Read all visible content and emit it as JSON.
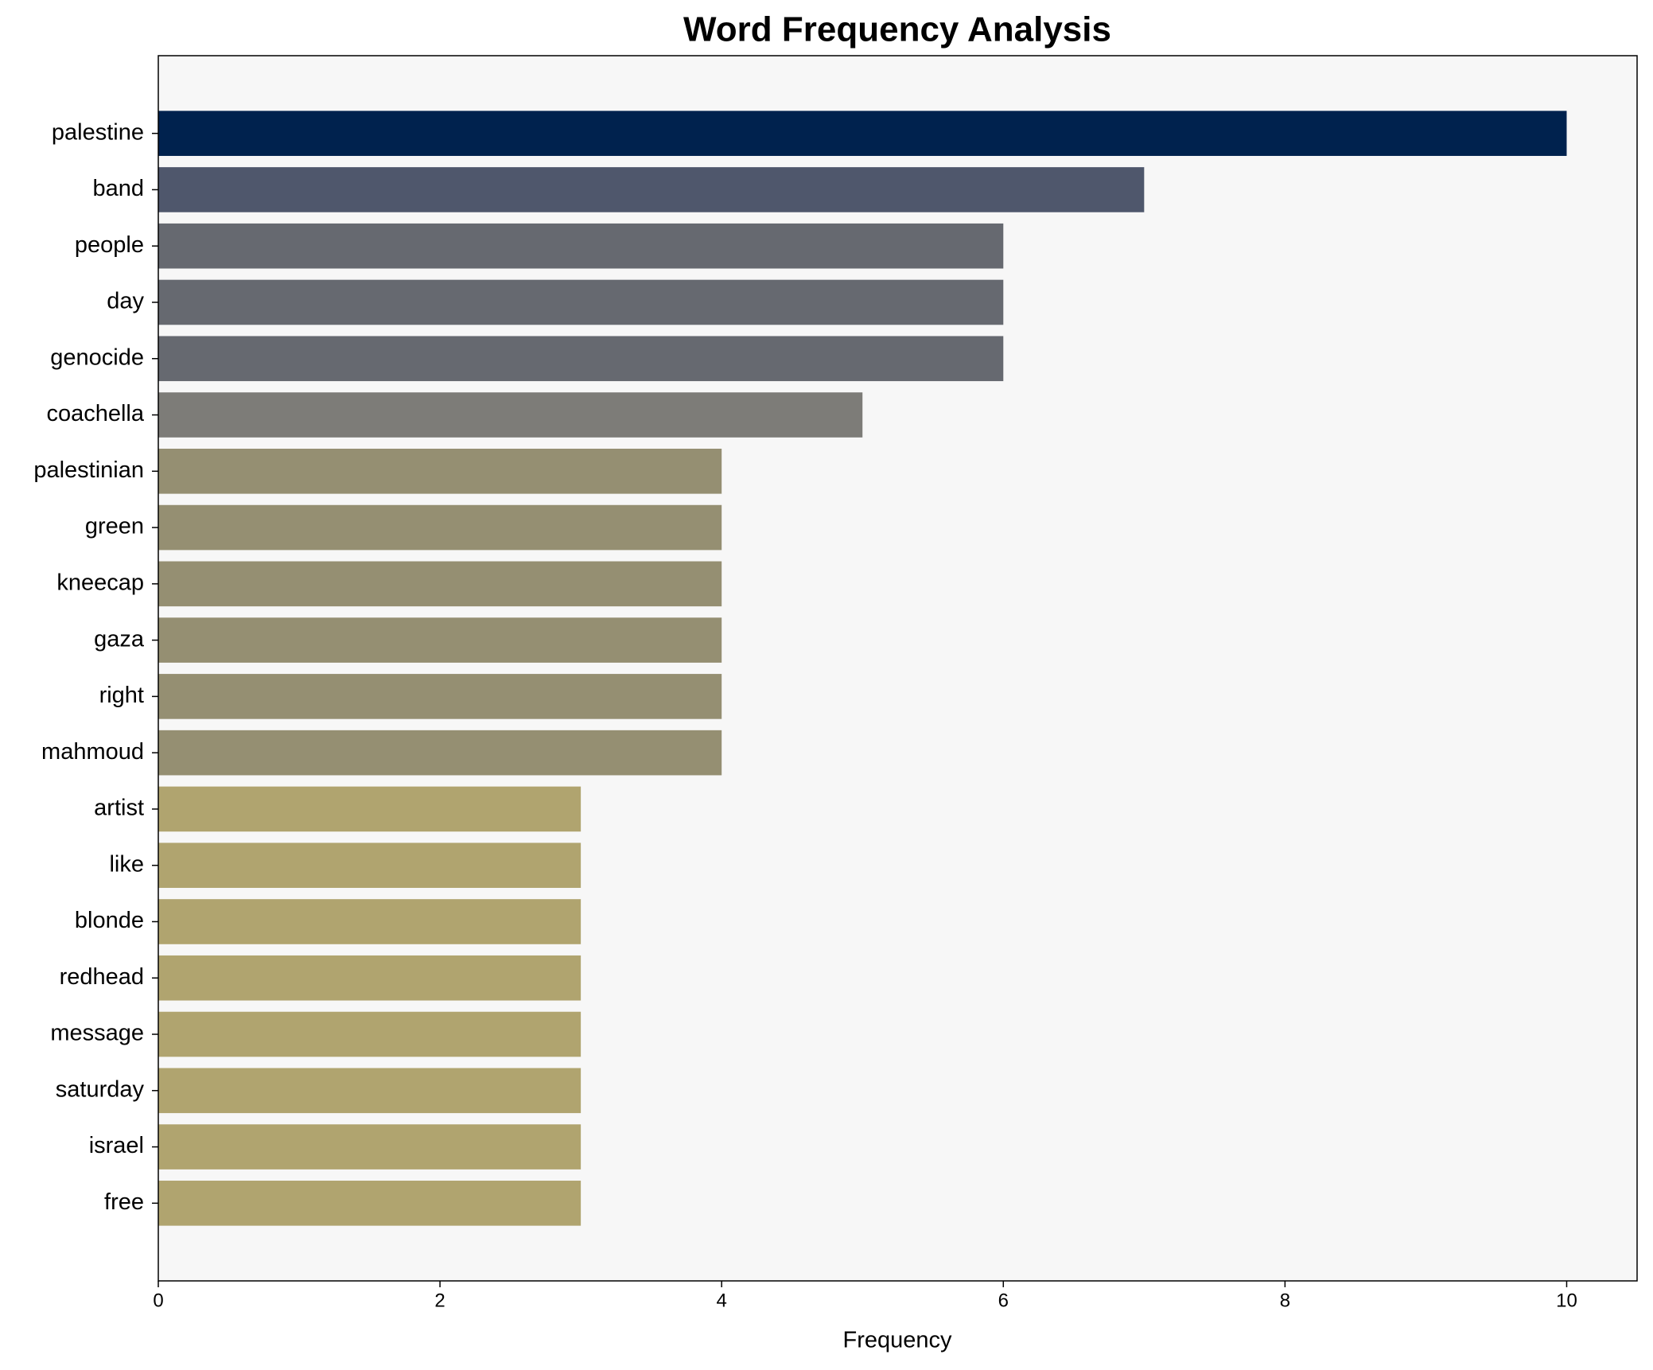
{
  "chart_data": {
    "type": "barh",
    "title": "Word Frequency Analysis",
    "xlabel": "Frequency",
    "categories": [
      "palestine",
      "band",
      "people",
      "day",
      "genocide",
      "coachella",
      "palestinian",
      "green",
      "kneecap",
      "gaza",
      "right",
      "mahmoud",
      "artist",
      "like",
      "blonde",
      "redhead",
      "message",
      "saturday",
      "israel",
      "free"
    ],
    "values": [
      10,
      7,
      6,
      6,
      6,
      5,
      4,
      4,
      4,
      4,
      4,
      4,
      3,
      3,
      3,
      3,
      3,
      3,
      3,
      3
    ],
    "colors": [
      "#00224e",
      "#4f576c",
      "#666970",
      "#666970",
      "#666970",
      "#7d7c78",
      "#958f72",
      "#958f72",
      "#958f72",
      "#958f72",
      "#958f72",
      "#958f72",
      "#b0a46f",
      "#b0a46f",
      "#b0a46f",
      "#b0a46f",
      "#b0a46f",
      "#b0a46f",
      "#b0a46f",
      "#b0a46f"
    ],
    "xlim": [
      0,
      10.5
    ],
    "xticks": [
      0,
      2,
      4,
      6,
      8,
      10
    ],
    "grid": false
  }
}
